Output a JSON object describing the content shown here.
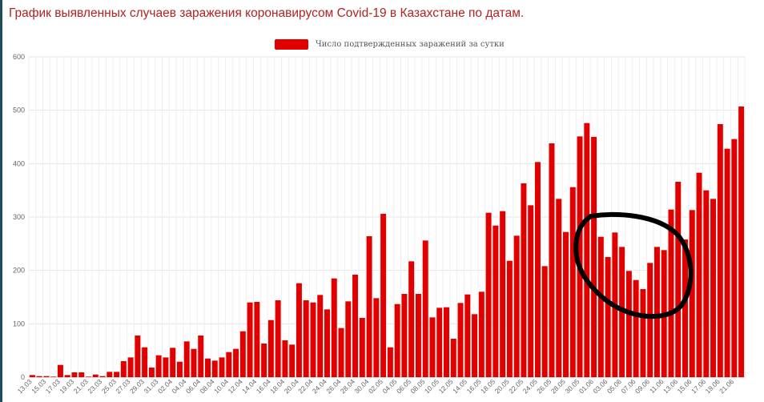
{
  "title": "График выявленных случаев заражения коронавирусом Covid-19 в Казахстане по датам.",
  "chart_data": {
    "type": "bar",
    "series": [
      {
        "name": "Число подтвержденных заражений за сутки",
        "color": "#e00000",
        "values": [
          4,
          2,
          2,
          1,
          23,
          4,
          9,
          9,
          1,
          5,
          2,
          10,
          10,
          30,
          37,
          78,
          56,
          18,
          41,
          37,
          55,
          29,
          67,
          53,
          78,
          35,
          31,
          37,
          47,
          53,
          86,
          140,
          141,
          63,
          107,
          144,
          69,
          61,
          176,
          144,
          140,
          154,
          127,
          185,
          92,
          142,
          192,
          111,
          264,
          148,
          306,
          56,
          137,
          156,
          217,
          156,
          256,
          112,
          130,
          131,
          72,
          139,
          155,
          118,
          160,
          308,
          284,
          311,
          218,
          265,
          363,
          322,
          403,
          208,
          438,
          334,
          272,
          356,
          451,
          476,
          450,
          263,
          225,
          271,
          244,
          199,
          182,
          165,
          214,
          244,
          238,
          314,
          366,
          258,
          313,
          383,
          350,
          334,
          474,
          428,
          446,
          507
        ]
      }
    ],
    "x_labels": [
      "13.03",
      "15.03",
      "17.03",
      "19.03",
      "21.03",
      "23.03",
      "25.03",
      "27.03",
      "29.03",
      "31.03",
      "02.04",
      "04.04",
      "06.04",
      "08.04",
      "10.04",
      "12.04",
      "14.04",
      "16.04",
      "18.04",
      "20.04",
      "22.04",
      "24.04",
      "26.04",
      "28.04",
      "30.04",
      "02.05",
      "04.05",
      "06.05",
      "08.05",
      "10.05",
      "12.05",
      "14.05",
      "16.05",
      "18.05",
      "20.05",
      "22.05",
      "24.05",
      "26.05",
      "28.05",
      "30.05",
      "01.06",
      "03.06",
      "05.06",
      "07.06",
      "09.06",
      "11.06",
      "13.06",
      "15.06",
      "17.06",
      "19.06",
      "21.06"
    ],
    "y_ticks": [
      0,
      100,
      200,
      300,
      400,
      500,
      600
    ],
    "ylim": [
      0,
      600
    ],
    "grid": true,
    "legend_position": "top-center",
    "annotation": "hand-drawn black circle around the early-June dip"
  }
}
